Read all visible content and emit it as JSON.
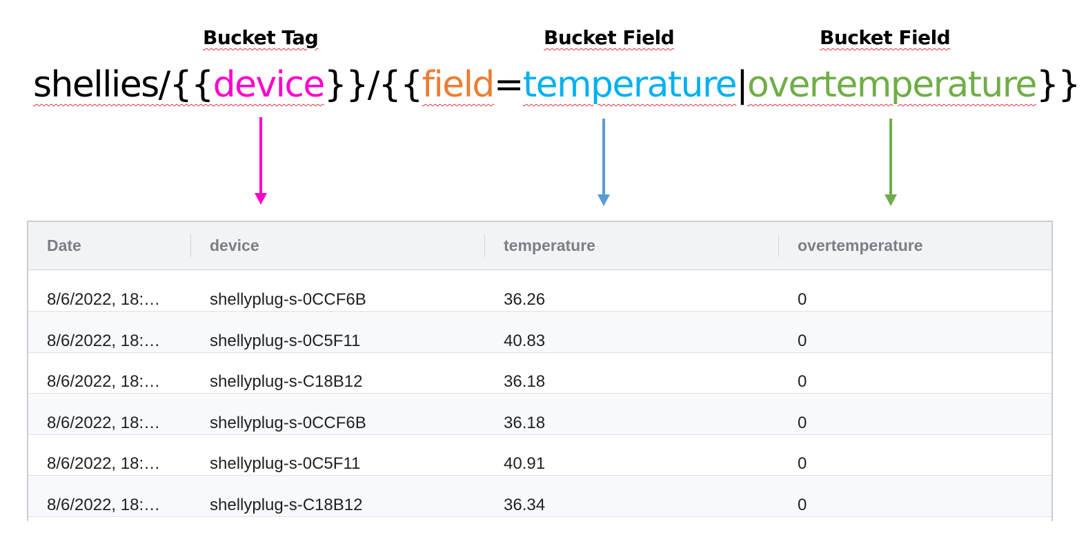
{
  "labels": {
    "tag": "Bucket Tag",
    "field1": "Bucket Field",
    "field2": "Bucket Field"
  },
  "pattern": {
    "prefix": "shellies/{{",
    "device": "device",
    "mid": "}}/{{",
    "field": "field",
    "equals": "=",
    "temperature": "temperature",
    "pipe": "|",
    "overtemperature": "overtemperature",
    "suffix": "}}"
  },
  "colors": {
    "device": "#ff00cc",
    "field": "#ed7d31",
    "temperature": "#00b0f0",
    "overtemperature": "#70ad47",
    "arrow_device": "#ff00cc",
    "arrow_temperature": "#5b9bd5",
    "arrow_overtemperature": "#70ad47"
  },
  "table": {
    "columns": [
      "Date",
      "device",
      "temperature",
      "overtemperature"
    ],
    "rows": [
      [
        "8/6/2022, 18:…",
        "shellyplug-s-0CCF6B",
        "36.26",
        "0"
      ],
      [
        "8/6/2022, 18:…",
        "shellyplug-s-0C5F11",
        "40.83",
        "0"
      ],
      [
        "8/6/2022, 18:…",
        "shellyplug-s-C18B12",
        "36.18",
        "0"
      ],
      [
        "8/6/2022, 18:…",
        "shellyplug-s-0CCF6B",
        "36.18",
        "0"
      ],
      [
        "8/6/2022, 18:…",
        "shellyplug-s-0C5F11",
        "40.91",
        "0"
      ],
      [
        "8/6/2022, 18:…",
        "shellyplug-s-C18B12",
        "36.34",
        "0"
      ]
    ]
  }
}
